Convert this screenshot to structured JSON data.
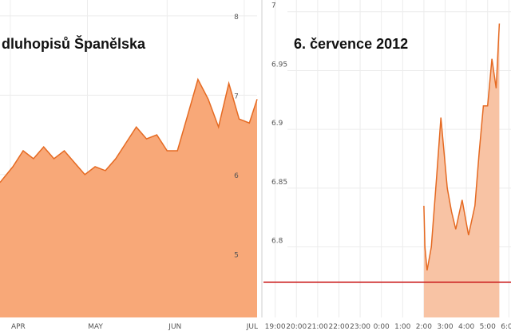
{
  "chart_data": [
    {
      "type": "area",
      "title": "dluhopisů Španělska",
      "x_labels": [
        "APR",
        "MAY",
        "JUN",
        "JUL"
      ],
      "y_tick_labels": [
        "8",
        "7",
        "6",
        "5"
      ],
      "ylim": [
        4.2,
        8.2
      ],
      "fill_color": "#f8a878",
      "line_color": "#e56a22",
      "grid": true,
      "series": [
        {
          "x": [
            "2012-03-28",
            "2012-04-02",
            "2012-04-06",
            "2012-04-10",
            "2012-04-14",
            "2012-04-18",
            "2012-04-22",
            "2012-04-26",
            "2012-04-30",
            "2012-05-04",
            "2012-05-08",
            "2012-05-12",
            "2012-05-16",
            "2012-05-20",
            "2012-05-24",
            "2012-05-28",
            "2012-06-01",
            "2012-06-05",
            "2012-06-09",
            "2012-06-13",
            "2012-06-17",
            "2012-06-21",
            "2012-06-25",
            "2012-06-29",
            "2012-07-03",
            "2012-07-06"
          ],
          "values": [
            5.9,
            6.1,
            6.3,
            6.2,
            6.35,
            6.2,
            6.3,
            6.15,
            6.0,
            6.1,
            6.05,
            6.2,
            6.4,
            6.6,
            6.45,
            6.5,
            6.3,
            6.3,
            6.75,
            7.2,
            6.95,
            6.6,
            7.15,
            6.7,
            6.65,
            6.95
          ]
        }
      ]
    },
    {
      "type": "area",
      "title": "6. července 2012",
      "x_labels": [
        "19:00",
        "20:00",
        "21:00",
        "22:00",
        "23:00",
        "0:00",
        "1:00",
        "2:00",
        "3:00",
        "4:00",
        "5:00",
        "6:00"
      ],
      "y_tick_labels": [
        "7",
        "6.95",
        "6.9",
        "6.85",
        "6.8"
      ],
      "ylim": [
        6.74,
        7.01
      ],
      "reference_line": 6.77,
      "reference_color": "#cc2222",
      "fill_color": "#f8c3a4",
      "line_color": "#e56a22",
      "grid": true,
      "series": [
        {
          "x": [
            2.0,
            2.05,
            2.15,
            2.35,
            2.6,
            2.8,
            2.95,
            3.1,
            3.3,
            3.5,
            3.8,
            4.1,
            4.4,
            4.6,
            4.8,
            5.0,
            5.2,
            5.4,
            5.55
          ],
          "values": [
            6.835,
            6.8,
            6.78,
            6.8,
            6.86,
            6.91,
            6.88,
            6.85,
            6.83,
            6.815,
            6.84,
            6.81,
            6.835,
            6.88,
            6.92,
            6.92,
            6.96,
            6.935,
            6.99
          ]
        }
      ]
    }
  ]
}
